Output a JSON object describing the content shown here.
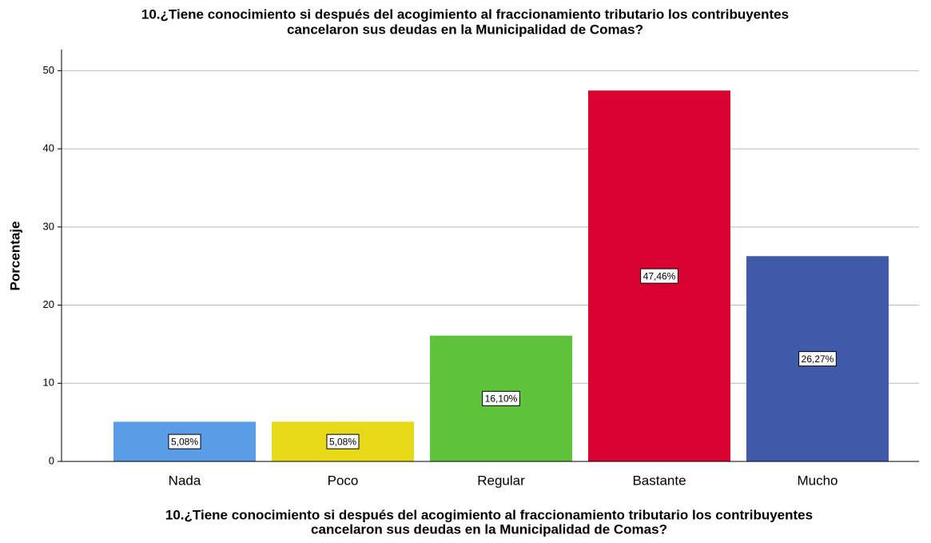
{
  "chart_data": {
    "type": "bar",
    "title": [
      "10.¿Tiene conocimiento si después del acogimiento al fraccionamiento tributario los contribuyentes",
      "cancelaron sus deudas en la Municipalidad de Comas?"
    ],
    "x_label": [
      "10.¿Tiene conocimiento si después del acogimiento al fraccionamiento tributario los contribuyentes",
      "cancelaron sus deudas en la Municipalidad de Comas?"
    ],
    "y_label": "Porcentaje",
    "categories": [
      "Nada",
      "Poco",
      "Regular",
      "Bastante",
      "Mucho"
    ],
    "values": [
      5.08,
      5.08,
      16.1,
      47.46,
      26.27
    ],
    "value_labels": [
      "5,08%",
      "5,08%",
      "16,10%",
      "47,46%",
      "26,27%"
    ],
    "colors": [
      "#5b9ce6",
      "#e6d918",
      "#5ec33b",
      "#d90032",
      "#3e5aa8"
    ],
    "ylim": [
      0,
      52.7
    ],
    "yticks": [
      0,
      10,
      20,
      30,
      40,
      50
    ],
    "grid": true
  }
}
